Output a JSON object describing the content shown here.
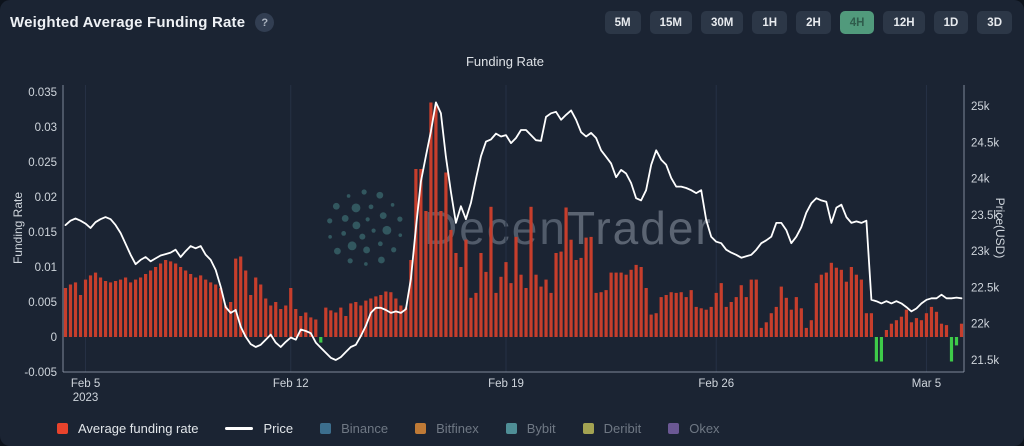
{
  "header": {
    "title": "Weighted Average Funding Rate",
    "help_icon": "?"
  },
  "timeframes": {
    "options": [
      "5M",
      "15M",
      "30M",
      "1H",
      "2H",
      "4H",
      "12H",
      "1D",
      "3D"
    ],
    "active": "4H"
  },
  "watermark": {
    "part1": "Decen",
    "part2": "Trader"
  },
  "colors": {
    "background": "#1b2433",
    "bar_positive": "#c73e2c",
    "bar_negative": "#3ecb49",
    "price_line": "#ffffff",
    "axis_line": "#98a2b2",
    "grid_line": "#263145",
    "tick_text": "#cfd5dc",
    "active_button": "#519a7c"
  },
  "chart_data": {
    "type": "bar+line",
    "title": "Funding Rate",
    "interval": "4H",
    "x_axis": {
      "tick_labels": [
        "Feb 5",
        "Feb 12",
        "Feb 19",
        "Feb 26",
        "Mar 5"
      ],
      "tick_indices": [
        4,
        45,
        88,
        130,
        172
      ],
      "year_label": "2023",
      "points": 180
    },
    "left_axis": {
      "label": "Funding Rate",
      "tick_values": [
        0.035,
        0.03,
        0.025,
        0.02,
        0.015,
        0.01,
        0.005,
        0,
        -0.005
      ],
      "tick_labels": [
        "0.035",
        "0.03",
        "0.025",
        "0.02",
        "0.015",
        "0.01",
        "0.005",
        "0",
        "-0.005"
      ],
      "range": [
        -0.005,
        0.036
      ]
    },
    "right_axis": {
      "label": "Price(USD)",
      "tick_values": [
        25000,
        24500,
        24000,
        23500,
        23000,
        22500,
        22000,
        21500
      ],
      "tick_labels": [
        "25k",
        "24.5k",
        "24k",
        "23.5k",
        "23k",
        "22.5k",
        "22k",
        "21.5k"
      ],
      "range": [
        21335,
        25290
      ]
    },
    "series": [
      {
        "name": "Average funding rate",
        "type": "bar",
        "axis": "left",
        "values": [
          0.007,
          0.0075,
          0.0078,
          0.006,
          0.0082,
          0.0088,
          0.0092,
          0.0085,
          0.008,
          0.0078,
          0.008,
          0.0082,
          0.0085,
          0.0078,
          0.0082,
          0.0085,
          0.009,
          0.0095,
          0.01,
          0.0105,
          0.011,
          0.0108,
          0.0105,
          0.01,
          0.0095,
          0.009,
          0.0085,
          0.0088,
          0.0082,
          0.0078,
          0.0075,
          0.007,
          0.0045,
          0.005,
          0.0112,
          0.0115,
          0.0095,
          0.006,
          0.0085,
          0.0075,
          0.0055,
          0.0045,
          0.005,
          0.004,
          0.0045,
          0.007,
          0.004,
          0.003,
          0.0035,
          0.0028,
          0.0025,
          -0.0008,
          0.0042,
          0.0038,
          0.0035,
          0.0042,
          0.003,
          0.0048,
          0.005,
          0.0045,
          0.0052,
          0.0055,
          0.0058,
          0.006,
          0.0065,
          0.0064,
          0.0055,
          0.0045,
          0.0042,
          0.011,
          0.024,
          0.024,
          0.018,
          0.0335,
          0.033,
          0.018,
          0.0235,
          0.0153,
          0.012,
          0.01,
          0.0139,
          0.0056,
          0.0063,
          0.012,
          0.0093,
          0.0186,
          0.0063,
          0.0086,
          0.0107,
          0.0077,
          0.0143,
          0.0089,
          0.007,
          0.0186,
          0.0089,
          0.0072,
          0.0082,
          0.0063,
          0.012,
          0.0122,
          0.0185,
          0.0139,
          0.011,
          0.0113,
          0.0142,
          0.0143,
          0.0063,
          0.0064,
          0.0067,
          0.0092,
          0.0092,
          0.0092,
          0.0089,
          0.0096,
          0.0103,
          0.01,
          0.007,
          0.0032,
          0.0034,
          0.0057,
          0.006,
          0.0064,
          0.0063,
          0.0064,
          0.0057,
          0.0067,
          0.0043,
          0.0041,
          0.0039,
          0.0043,
          0.0063,
          0.0077,
          0.0043,
          0.005,
          0.0057,
          0.0074,
          0.0057,
          0.0082,
          0.0082,
          0.0013,
          0.0021,
          0.0034,
          0.0043,
          0.0072,
          0.0056,
          0.0039,
          0.0057,
          0.0041,
          0.0013,
          0.0024,
          0.0077,
          0.0089,
          0.0092,
          0.0106,
          0.0099,
          0.0096,
          0.0079,
          0.01,
          0.0089,
          0.0082,
          0.0034,
          0.0034,
          -0.0035,
          -0.0035,
          0.001,
          0.0019,
          0.0024,
          0.0029,
          0.0039,
          0.0021,
          0.0027,
          0.0024,
          0.0034,
          0.0043,
          0.0036,
          0.0019,
          0.0017,
          -0.0035,
          -0.0012,
          0.0019
        ]
      },
      {
        "name": "Price",
        "type": "line",
        "axis": "right",
        "values": [
          23360,
          23420,
          23450,
          23420,
          23380,
          23320,
          23400,
          23440,
          23470,
          23440,
          23360,
          23250,
          23100,
          22950,
          22820,
          22880,
          22920,
          22860,
          22900,
          22940,
          22960,
          22980,
          23020,
          22920,
          23000,
          23070,
          23040,
          23070,
          22950,
          22880,
          22740,
          22510,
          22230,
          22150,
          22190,
          21960,
          21820,
          21720,
          21680,
          21710,
          21780,
          21850,
          21740,
          21680,
          21750,
          21810,
          21780,
          21920,
          21900,
          21870,
          21740,
          21670,
          21600,
          21530,
          21500,
          21540,
          21610,
          21680,
          21710,
          21830,
          21970,
          22150,
          22220,
          22220,
          22190,
          22150,
          22170,
          22150,
          22200,
          22620,
          23320,
          23960,
          24310,
          24650,
          25050,
          24900,
          24300,
          23820,
          23390,
          23620,
          23440,
          23670,
          24000,
          24310,
          24510,
          24540,
          24620,
          24580,
          24600,
          24490,
          24560,
          24670,
          24670,
          24600,
          24530,
          24520,
          24850,
          24900,
          24920,
          24810,
          24880,
          24940,
          24810,
          24640,
          24580,
          24630,
          24560,
          24390,
          24300,
          24210,
          24020,
          24120,
          24070,
          23940,
          23730,
          23700,
          23840,
          24190,
          24390,
          24260,
          24190,
          24010,
          23890,
          23890,
          23870,
          23840,
          23800,
          23840,
          23430,
          23200,
          23130,
          23110,
          23020,
          22980,
          22950,
          22910,
          22930,
          22950,
          23020,
          23110,
          23150,
          23200,
          23390,
          23390,
          23290,
          23110,
          23200,
          23330,
          23530,
          23660,
          23730,
          23700,
          23680,
          23390,
          23600,
          23640,
          23470,
          23390,
          23410,
          23390,
          23420,
          22330,
          22310,
          22280,
          22310,
          22280,
          22310,
          22280,
          22230,
          22170,
          22210,
          22280,
          22330,
          22350,
          22350,
          22400,
          22350,
          22350,
          22360,
          22350
        ]
      }
    ],
    "legend": [
      {
        "label": "Average funding rate",
        "swatch": "square",
        "color": "#e8432c",
        "active": true
      },
      {
        "label": "Price",
        "swatch": "line",
        "color": "#ffffff",
        "active": true
      },
      {
        "label": "Binance",
        "swatch": "square",
        "color": "#3c6e8d",
        "active": false
      },
      {
        "label": "Bitfinex",
        "swatch": "square",
        "color": "#bf7a36",
        "active": false
      },
      {
        "label": "Bybit",
        "swatch": "square",
        "color": "#4f8e96",
        "active": false
      },
      {
        "label": "Deribit",
        "swatch": "square",
        "color": "#a3a352",
        "active": false
      },
      {
        "label": "Okex",
        "swatch": "square",
        "color": "#6b5894",
        "active": false
      }
    ],
    "grid": "vertical-weekly",
    "legend_position": "bottom-left"
  }
}
